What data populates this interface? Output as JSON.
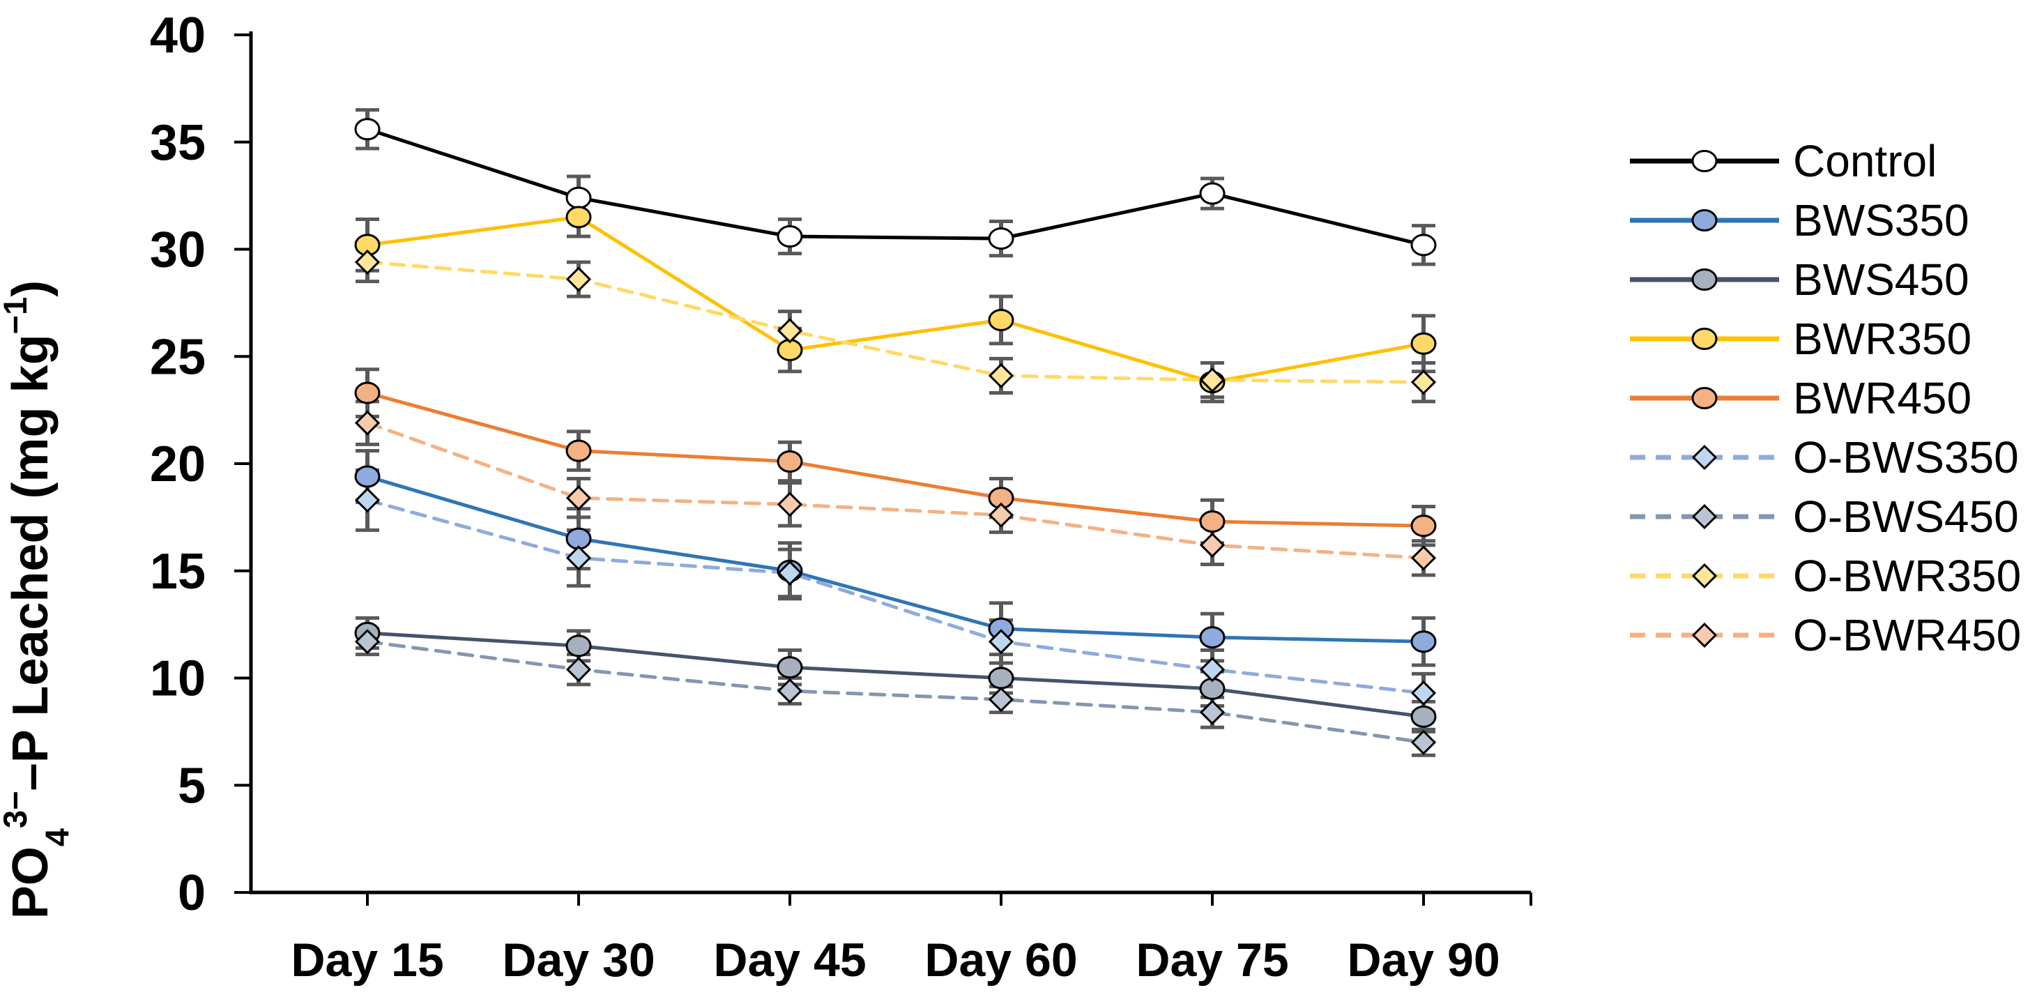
{
  "figure": {
    "background": "#ffffff",
    "axis_color": "#000000",
    "error_bar_color": "#595959"
  },
  "chart_data": {
    "type": "line",
    "title": "",
    "xlabel": "",
    "ylabel": "PO43−–P Leached (mg kg−1)",
    "ylabel_rich": [
      {
        "text": "PO",
        "script": "normal"
      },
      {
        "text": "4",
        "script": "sub"
      },
      {
        "text": "3−",
        "script": "sup"
      },
      {
        "text": "–P Leached (mg kg",
        "script": "normal"
      },
      {
        "text": "−1",
        "script": "sup"
      },
      {
        "text": ")",
        "script": "normal"
      }
    ],
    "categories": [
      "Day 15",
      "Day 30",
      "Day 45",
      "Day 60",
      "Day 75",
      "Day 90"
    ],
    "ylim": [
      0,
      40
    ],
    "ytick_step": 5,
    "grid": false,
    "legend_position": "right",
    "series": [
      {
        "name": "Control",
        "marker": "circle",
        "dashed": false,
        "line_color": "#000000",
        "fill_color": "#FFFFFF",
        "values": [
          35.6,
          32.4,
          30.6,
          30.5,
          32.6,
          30.2
        ],
        "errors": [
          0.9,
          1.0,
          0.8,
          0.8,
          0.7,
          0.9
        ]
      },
      {
        "name": "BWS350",
        "marker": "circle",
        "dashed": false,
        "line_color": "#2E75B6",
        "fill_color": "#8FAADC",
        "values": [
          19.4,
          16.5,
          15.0,
          12.3,
          11.9,
          11.7
        ],
        "errors": [
          1.2,
          1.4,
          1.3,
          1.2,
          1.1,
          1.1
        ]
      },
      {
        "name": "BWS450",
        "marker": "circle",
        "dashed": false,
        "line_color": "#44546A",
        "fill_color": "#A6B0BE",
        "values": [
          12.1,
          11.5,
          10.5,
          10.0,
          9.5,
          8.2
        ],
        "errors": [
          0.7,
          0.7,
          0.8,
          0.7,
          0.8,
          0.7
        ]
      },
      {
        "name": "BWR350",
        "marker": "circle",
        "dashed": false,
        "line_color": "#FFC000",
        "fill_color": "#FFD966",
        "values": [
          30.2,
          31.5,
          25.3,
          26.7,
          23.8,
          25.6
        ],
        "errors": [
          1.2,
          0.9,
          1.0,
          1.1,
          0.9,
          1.3
        ]
      },
      {
        "name": "BWR450",
        "marker": "circle",
        "dashed": false,
        "line_color": "#ED7D31",
        "fill_color": "#F4B183",
        "values": [
          23.3,
          20.6,
          20.1,
          18.4,
          17.3,
          17.1
        ],
        "errors": [
          1.1,
          0.9,
          0.9,
          0.9,
          1.0,
          0.9
        ]
      },
      {
        "name": "O-BWS350",
        "marker": "diamond",
        "dashed": true,
        "line_color": "#8FAADC",
        "fill_color": "#BDD7EE",
        "values": [
          18.3,
          15.6,
          14.9,
          11.7,
          10.4,
          9.3
        ],
        "errors": [
          1.4,
          1.3,
          1.1,
          1.0,
          0.9,
          0.9
        ]
      },
      {
        "name": "O-BWS450",
        "marker": "diamond",
        "dashed": true,
        "line_color": "#8496B0",
        "fill_color": "#B9C5D3",
        "values": [
          11.7,
          10.4,
          9.4,
          9.0,
          8.4,
          7.0
        ],
        "errors": [
          0.6,
          0.7,
          0.6,
          0.6,
          0.7,
          0.6
        ]
      },
      {
        "name": "O-BWR350",
        "marker": "diamond",
        "dashed": true,
        "line_color": "#FFD966",
        "fill_color": "#FFE699",
        "values": [
          29.4,
          28.6,
          26.2,
          24.1,
          23.9,
          23.8
        ],
        "errors": [
          0.9,
          0.8,
          0.9,
          0.8,
          0.8,
          0.9
        ]
      },
      {
        "name": "O-BWR450",
        "marker": "diamond",
        "dashed": true,
        "line_color": "#F4B183",
        "fill_color": "#F8CBAD",
        "values": [
          21.9,
          18.4,
          18.1,
          17.6,
          16.2,
          15.6
        ],
        "errors": [
          1.0,
          0.9,
          1.0,
          0.8,
          0.9,
          0.8
        ]
      }
    ]
  }
}
